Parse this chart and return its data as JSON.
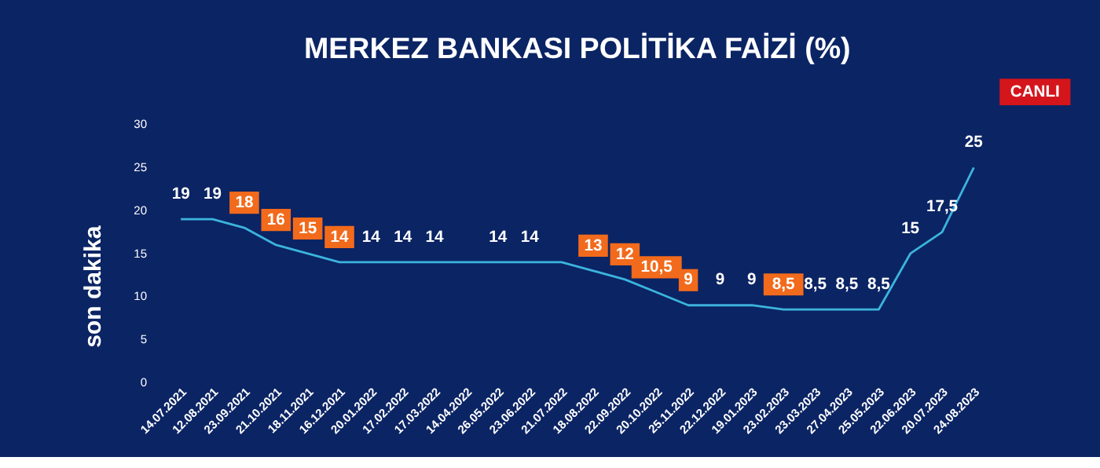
{
  "chart_data": {
    "type": "line",
    "title": "MERKEZ BANKASI POLİTİKA FAİZİ (%)",
    "categories": [
      "14.07.2021",
      "12.08.2021",
      "23.09.2021",
      "21.10.2021",
      "18.11.2021",
      "16.12.2021",
      "20.01.2022",
      "17.02.2022",
      "17.03.2022",
      "14.04.2022",
      "26.05.2022",
      "23.06.2022",
      "21.07.2022",
      "18.08.2022",
      "22.09.2022",
      "20.10.2022",
      "25.11.2022",
      "22.12.2022",
      "19.01.2023",
      "23.02.2023",
      "23.03.2023",
      "27.04.2023",
      "25.05.2023",
      "22.06.2023",
      "20.07.2023",
      "24.08.2023"
    ],
    "series": [
      {
        "color": "#3cb4dc",
        "values": [
          19,
          19,
          18,
          16,
          15,
          14,
          14,
          14,
          14,
          14,
          14,
          14,
          14,
          13,
          12,
          10.5,
          9,
          9,
          9,
          8.5,
          8.5,
          8.5,
          8.5,
          15,
          17.5,
          25
        ],
        "value_labels": [
          "19",
          "19",
          "18",
          "16",
          "15",
          "14",
          "14",
          "14",
          "14",
          null,
          "14",
          "14",
          null,
          "13",
          "12",
          "10,5",
          "9",
          "9",
          "9",
          "8,5",
          "8,5",
          "8,5",
          "8,5",
          "15",
          "17,5",
          "25"
        ]
      }
    ],
    "ylim": [
      0,
      30
    ],
    "yticks": [
      0,
      5,
      10,
      15,
      20,
      25,
      30
    ],
    "grid": false,
    "marker": "none",
    "line_style": "solid",
    "annotations": [
      "CANLI",
      "son dakika"
    ]
  }
}
